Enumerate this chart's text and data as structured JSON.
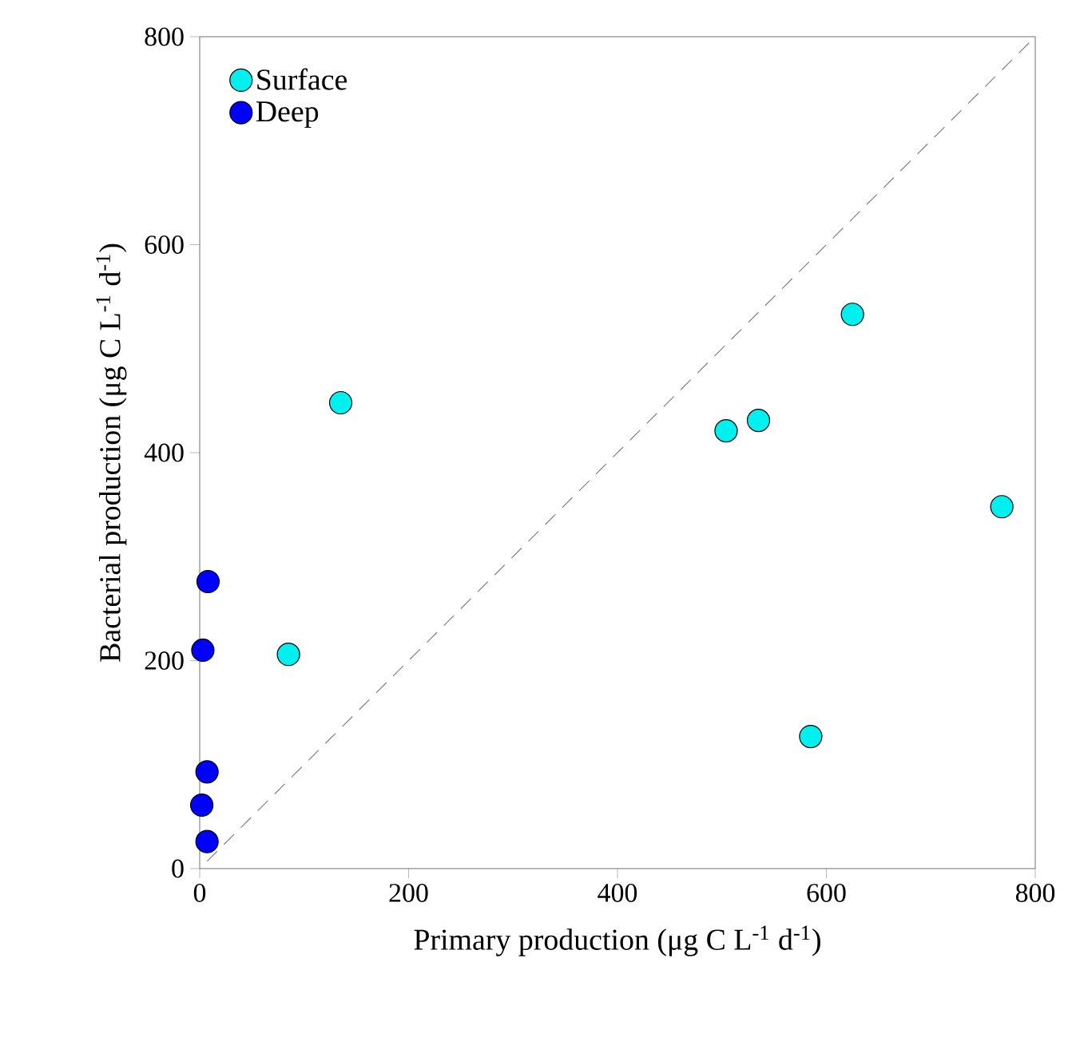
{
  "chart_data": {
    "type": "scatter",
    "xlabel": "Primary production (μg C L$^{-1}$ d$^{-1}$)",
    "ylabel": "Bacterial production (μg C L$^{-1}$ d$^{-1}$)",
    "series": [
      {
        "name": "Surface",
        "color": "#00f0f0",
        "marker": "circle",
        "x": [
          135,
          85,
          504,
          535,
          625,
          768,
          585
        ],
        "values": [
          448,
          206,
          421,
          431,
          533,
          348,
          127
        ]
      },
      {
        "name": "Deep",
        "color": "#0000ff",
        "marker": "circle",
        "x": [
          8,
          3,
          7,
          2,
          7
        ],
        "values": [
          276,
          210,
          93,
          61,
          26
        ]
      },
      {
        "type": "line",
        "marker": "none",
        "line_style": "dashed",
        "color": "#808080",
        "x": [
          7,
          800
        ],
        "values": [
          7,
          800
        ]
      }
    ],
    "xlim": [
      0,
      800
    ],
    "ylim": [
      0,
      800
    ],
    "xticks": [
      0,
      200,
      400,
      600,
      800
    ],
    "yticks": [
      0,
      200,
      400,
      600,
      800
    ],
    "grid": false,
    "legend": "top left"
  }
}
